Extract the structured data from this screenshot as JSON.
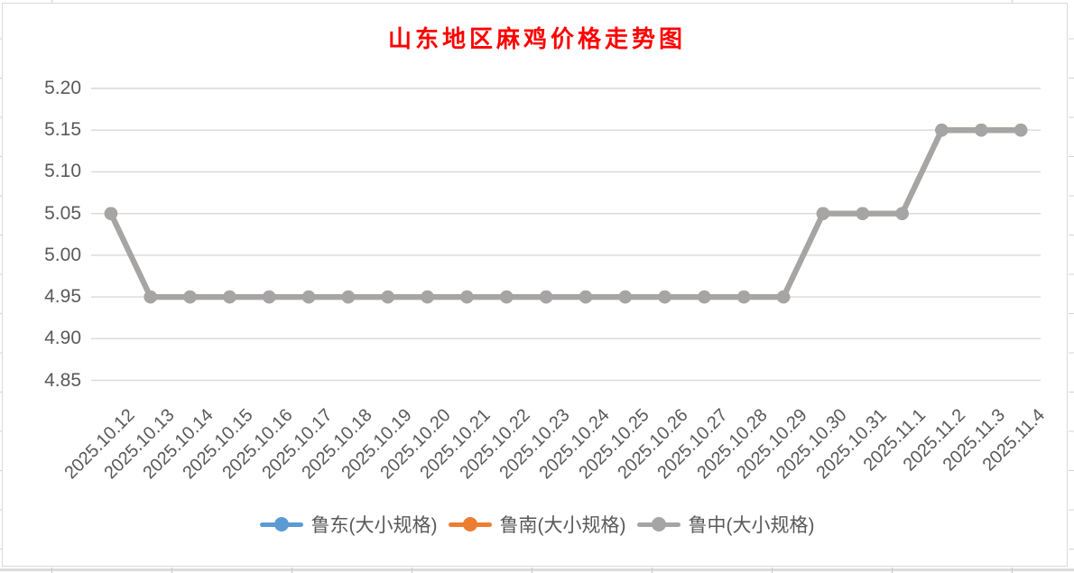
{
  "chart_data": {
    "type": "line",
    "title": "山东地区麻鸡价格走势图",
    "title_color": "#FF0000",
    "categories": [
      "2025.10.12",
      "2025.10.13",
      "2025.10.14",
      "2025.10.15",
      "2025.10.16",
      "2025.10.17",
      "2025.10.18",
      "2025.10.19",
      "2025.10.20",
      "2025.10.21",
      "2025.10.22",
      "2025.10.23",
      "2025.10.24",
      "2025.10.25",
      "2025.10.26",
      "2025.10.27",
      "2025.10.28",
      "2025.10.29",
      "2025.10.30",
      "2025.10.31",
      "2025.11.1",
      "2025.11.2",
      "2025.11.3",
      "2025.11.4"
    ],
    "series": [
      {
        "name": "鲁东(大小规格)",
        "color": "#5B9BD5",
        "values": [
          5.05,
          4.95,
          4.95,
          4.95,
          4.95,
          4.95,
          4.95,
          4.95,
          4.95,
          4.95,
          4.95,
          4.95,
          4.95,
          4.95,
          4.95,
          4.95,
          4.95,
          4.95,
          5.05,
          5.05,
          5.05,
          5.15,
          5.15,
          5.15
        ]
      },
      {
        "name": "鲁南(大小规格)",
        "color": "#ED7D31",
        "values": [
          5.05,
          4.95,
          4.95,
          4.95,
          4.95,
          4.95,
          4.95,
          4.95,
          4.95,
          4.95,
          4.95,
          4.95,
          4.95,
          4.95,
          4.95,
          4.95,
          4.95,
          4.95,
          5.05,
          5.05,
          5.05,
          5.15,
          5.15,
          5.15
        ]
      },
      {
        "name": "鲁中(大小规格)",
        "color": "#A5A5A5",
        "values": [
          5.05,
          4.95,
          4.95,
          4.95,
          4.95,
          4.95,
          4.95,
          4.95,
          4.95,
          4.95,
          4.95,
          4.95,
          4.95,
          4.95,
          4.95,
          4.95,
          4.95,
          4.95,
          5.05,
          5.05,
          5.05,
          5.15,
          5.15,
          5.15
        ]
      }
    ],
    "ylim": [
      4.85,
      5.2
    ],
    "ytick_step": 0.05,
    "ytick_labels": [
      "5.20",
      "5.15",
      "5.10",
      "5.05",
      "5.00",
      "4.95",
      "4.90",
      "4.85"
    ],
    "xlabel": "",
    "ylabel": "",
    "grid": true,
    "legend_position": "bottom",
    "colors": {
      "gridline": "#D9D9D9",
      "axis_text": "#595959",
      "legend_text": "#595959",
      "chart_border": "#D9D9D9",
      "plot_background": "#FFFFFF"
    }
  }
}
